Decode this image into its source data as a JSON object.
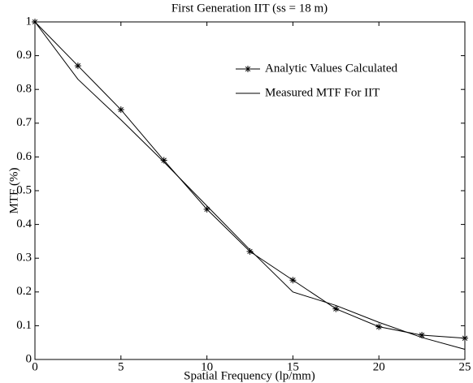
{
  "chart_data": {
    "type": "line",
    "title": "First Generation IIT (ss = 18   m)",
    "xlabel": "Spatial Frequency (lp/mm)",
    "ylabel": "MTF (%)",
    "x": [
      0,
      2.5,
      5,
      7.5,
      10,
      12.5,
      15,
      17.5,
      20,
      22.5,
      25
    ],
    "series": [
      {
        "name": "Analytic Values Calculated",
        "color": "#000000",
        "marker": "asterisk",
        "values": [
          1.0,
          0.87,
          0.74,
          0.59,
          0.445,
          0.32,
          0.235,
          0.15,
          0.097,
          0.072,
          0.063
        ]
      },
      {
        "name": "Measured MTF For IIT",
        "color": "#000000",
        "values": [
          1.0,
          0.83,
          0.71,
          0.585,
          0.455,
          0.325,
          0.2,
          0.16,
          0.11,
          0.065,
          0.03
        ]
      }
    ],
    "xlim": [
      0,
      25
    ],
    "xticks": [
      0,
      5,
      10,
      15,
      20,
      25
    ],
    "ylim": [
      0,
      1
    ],
    "yticks": [
      0,
      0.1,
      0.2,
      0.3,
      0.4,
      0.5,
      0.6,
      0.7,
      0.8,
      0.9,
      1
    ],
    "legend": "upper right",
    "grid": false
  }
}
